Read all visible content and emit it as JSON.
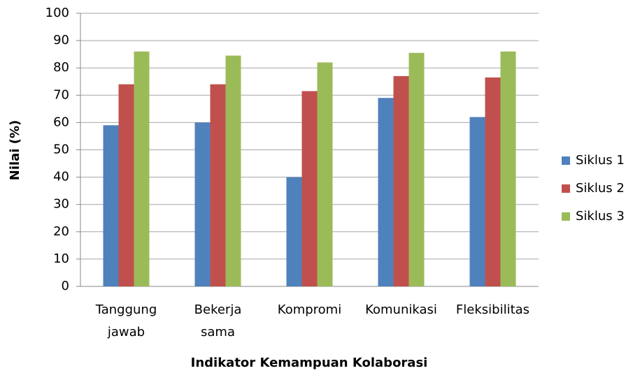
{
  "chart_data": {
    "type": "bar",
    "categories": [
      "Tanggung jawab",
      "Bekerja sama",
      "Kompromi",
      "Komunikasi",
      "Fleksibilitas"
    ],
    "series": [
      {
        "name": "Siklus 1",
        "color": "#4f81bd",
        "values": [
          59,
          60,
          40,
          69,
          62
        ]
      },
      {
        "name": "Siklus 2",
        "color": "#c0504d",
        "values": [
          74,
          74,
          71.5,
          77,
          76.5
        ]
      },
      {
        "name": "Siklus 3",
        "color": "#9bbb59",
        "values": [
          86,
          84.5,
          82,
          85.5,
          86
        ]
      }
    ],
    "ylim": [
      0,
      100
    ],
    "yticks": [
      0,
      10,
      20,
      30,
      40,
      50,
      60,
      70,
      80,
      90,
      100
    ],
    "ylabel": "Nilai (%)",
    "xlabel": "Indikator Kemampuan Kolaborasi",
    "grid": true,
    "legend": "right"
  }
}
